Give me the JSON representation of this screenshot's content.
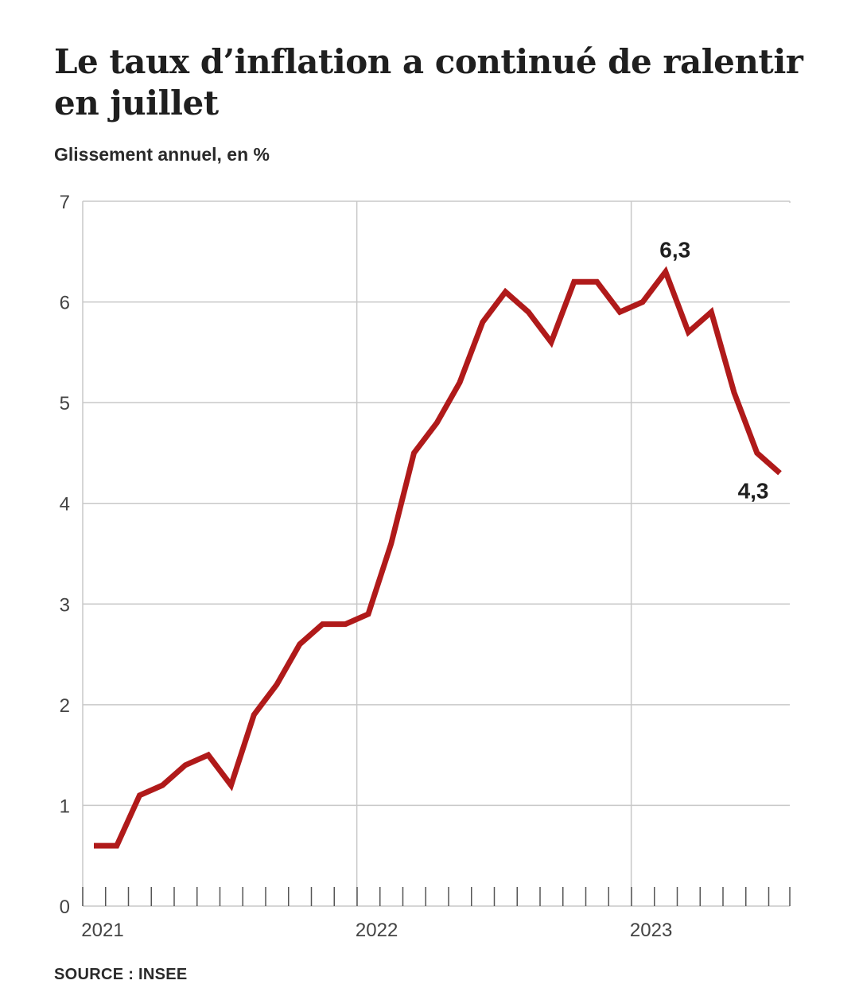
{
  "title": "Le taux d’inflation a continué de ralentir en juillet",
  "subtitle": "Glissement annuel, en %",
  "source": "SOURCE : INSEE",
  "colors": {
    "line": "#b01a1a",
    "grid": "#c8c8c8",
    "axis": "#555555"
  },
  "chart_data": {
    "type": "line",
    "title": "Le taux d’inflation a continué de ralentir en juillet",
    "ylabel": "Glissement annuel, en %",
    "xlabel": "",
    "ylim": [
      0,
      7
    ],
    "yticks": [
      0,
      1,
      2,
      3,
      4,
      5,
      6,
      7
    ],
    "xticks": [
      "2021",
      "2022",
      "2023"
    ],
    "grid": true,
    "x": [
      "2021-01",
      "2021-02",
      "2021-03",
      "2021-04",
      "2021-05",
      "2021-06",
      "2021-07",
      "2021-08",
      "2021-09",
      "2021-10",
      "2021-11",
      "2021-12",
      "2022-01",
      "2022-02",
      "2022-03",
      "2022-04",
      "2022-05",
      "2022-06",
      "2022-07",
      "2022-08",
      "2022-09",
      "2022-10",
      "2022-11",
      "2022-12",
      "2023-01",
      "2023-02",
      "2023-03",
      "2023-04",
      "2023-05",
      "2023-06",
      "2023-07"
    ],
    "values": [
      0.6,
      0.6,
      1.1,
      1.2,
      1.4,
      1.5,
      1.2,
      1.9,
      2.2,
      2.6,
      2.8,
      2.8,
      2.9,
      3.6,
      4.5,
      4.8,
      5.2,
      5.8,
      6.1,
      5.9,
      5.6,
      6.2,
      6.2,
      5.9,
      6.0,
      6.3,
      5.7,
      5.9,
      5.1,
      4.5,
      4.3
    ],
    "annotations": [
      {
        "x": "2023-02",
        "text": "6,3"
      },
      {
        "x": "2023-07",
        "text": "4,3"
      }
    ]
  }
}
